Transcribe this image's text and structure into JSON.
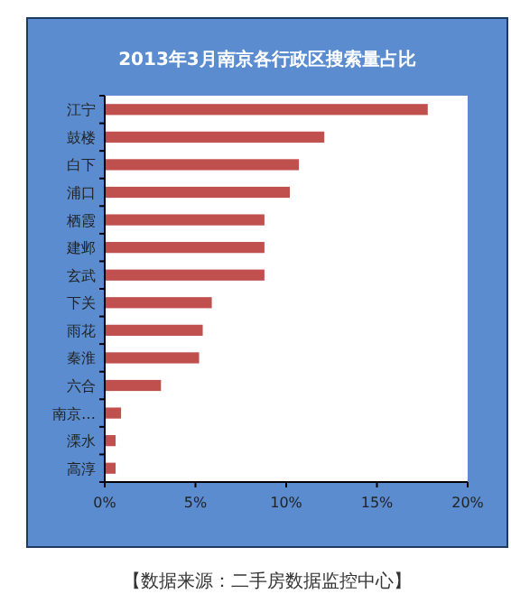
{
  "chart_data": {
    "type": "bar",
    "orientation": "horizontal",
    "title": "2013年3月南京各行政区搜索量占比",
    "categories": [
      "江宁",
      "鼓楼",
      "白下",
      "浦口",
      "栖霞",
      "建邺",
      "玄武",
      "下关",
      "雨花",
      "秦淮",
      "六合",
      "南京…",
      "溧水",
      "高淳"
    ],
    "values": [
      17.8,
      12.1,
      10.7,
      10.2,
      8.8,
      8.8,
      8.8,
      5.9,
      5.4,
      5.2,
      3.1,
      0.9,
      0.6,
      0.6
    ],
    "color": "#c0504d",
    "xlim": [
      0,
      20
    ],
    "xticks": [
      {
        "value": 0,
        "label": "0%"
      },
      {
        "value": 5,
        "label": "5%"
      },
      {
        "value": 10,
        "label": "10%"
      },
      {
        "value": 15,
        "label": "15%"
      },
      {
        "value": 20,
        "label": "20%"
      }
    ],
    "grid": false,
    "annotations": [
      "【数据来源：二手房数据监控中心】"
    ]
  }
}
